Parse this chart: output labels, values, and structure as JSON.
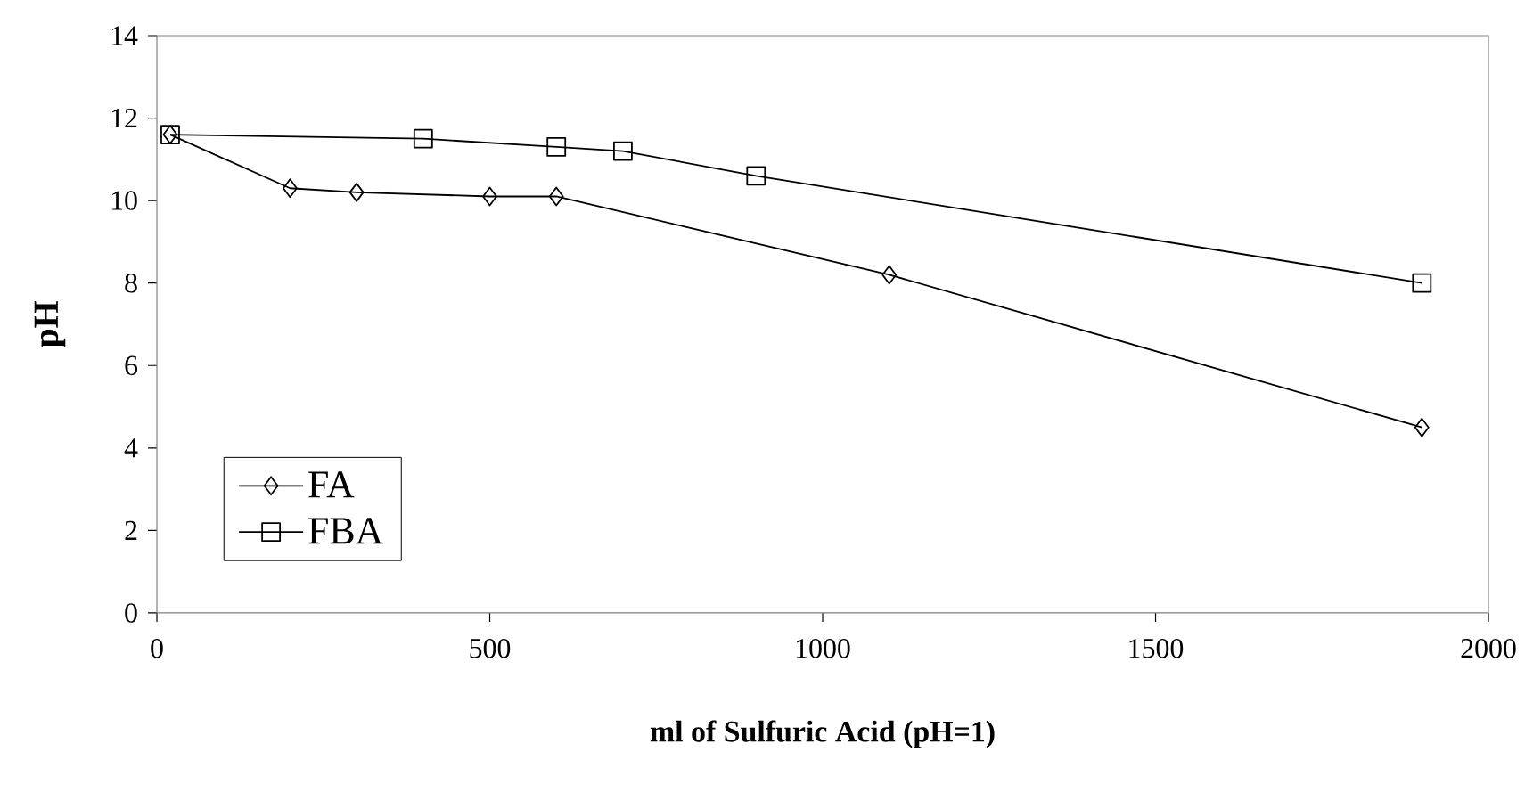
{
  "chart_data": {
    "type": "line",
    "xlabel": "ml of Sulfuric Acid (pH=1)",
    "ylabel": "pH",
    "xlim": [
      0,
      2000
    ],
    "xticks": [
      0,
      500,
      1000,
      1500,
      2000
    ],
    "ylim": [
      0,
      14
    ],
    "yticks": [
      0,
      2,
      4,
      6,
      8,
      10,
      12,
      14
    ],
    "grid": false,
    "legend": "bottom left",
    "line_style": "solid",
    "series": [
      {
        "name": "FA",
        "color": "#000000",
        "marker": "diamond",
        "x": [
          20,
          200,
          300,
          500,
          600,
          1100,
          1900
        ],
        "values": [
          11.6,
          10.3,
          10.2,
          10.1,
          10.1,
          8.2,
          4.5
        ]
      },
      {
        "name": "FBA",
        "color": "#000000",
        "marker": "square",
        "x": [
          20,
          400,
          600,
          700,
          900,
          1900
        ],
        "values": [
          11.6,
          11.5,
          11.3,
          11.2,
          10.6,
          8.0
        ]
      }
    ]
  }
}
